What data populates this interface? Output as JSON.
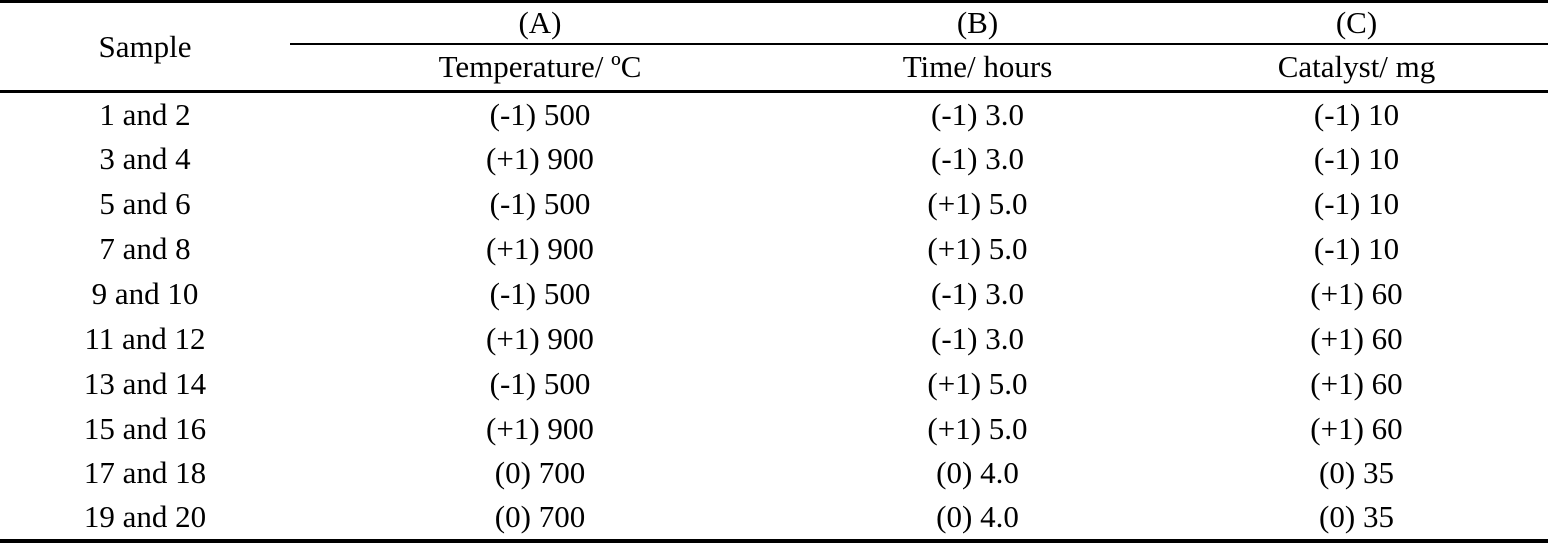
{
  "colors": {
    "text": "#000000",
    "background": "#ffffff",
    "rule": "#000000"
  },
  "table": {
    "header": {
      "sample": "Sample",
      "groups": [
        {
          "label": "(A)",
          "sub": "Temperature/ ºC"
        },
        {
          "label": "(B)",
          "sub": "Time/ hours"
        },
        {
          "label": "(C)",
          "sub": "Catalyst/ mg"
        }
      ]
    },
    "rows": [
      {
        "sample": "1 and 2",
        "a": "(-1) 500",
        "b": "(-1) 3.0",
        "c": "(-1) 10"
      },
      {
        "sample": "3 and 4",
        "a": "(+1) 900",
        "b": "(-1) 3.0",
        "c": "(-1) 10"
      },
      {
        "sample": "5 and 6",
        "a": "(-1) 500",
        "b": "(+1) 5.0",
        "c": "(-1) 10"
      },
      {
        "sample": "7 and 8",
        "a": "(+1) 900",
        "b": "(+1) 5.0",
        "c": "(-1) 10"
      },
      {
        "sample": "9 and 10",
        "a": "(-1) 500",
        "b": "(-1) 3.0",
        "c": "(+1) 60"
      },
      {
        "sample": "11 and 12",
        "a": "(+1) 900",
        "b": "(-1) 3.0",
        "c": "(+1) 60"
      },
      {
        "sample": "13 and 14",
        "a": "(-1) 500",
        "b": "(+1) 5.0",
        "c": "(+1) 60"
      },
      {
        "sample": "15 and 16",
        "a": "(+1) 900",
        "b": "(+1) 5.0",
        "c": "(+1) 60"
      },
      {
        "sample": "17 and 18",
        "a": "(0) 700",
        "b": "(0) 4.0",
        "c": "(0) 35"
      },
      {
        "sample": "19 and 20",
        "a": "(0) 700",
        "b": "(0) 4.0",
        "c": "(0) 35"
      }
    ]
  }
}
